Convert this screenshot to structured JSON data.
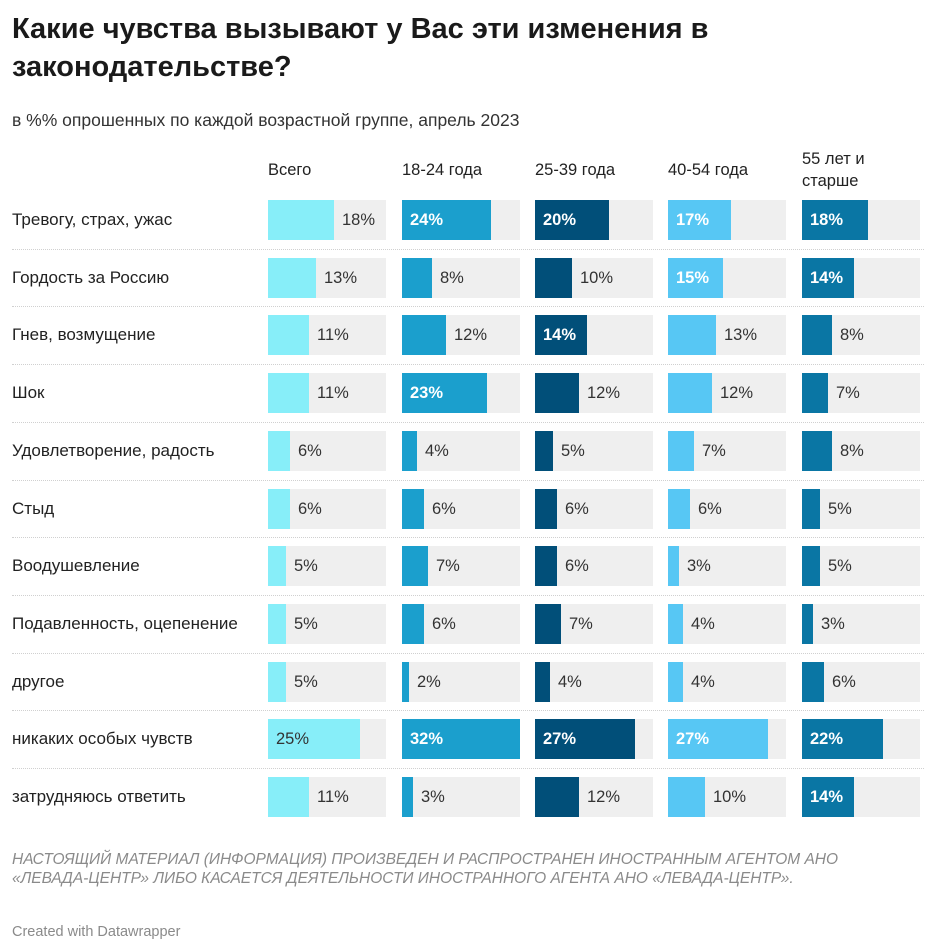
{
  "chart_data": {
    "type": "bar",
    "title": "Какие чувства вызывают у Вас эти изменения в законодательстве?",
    "subtitle": "в %% опрошенных по каждой возрастной группе, апрель 2023",
    "unit": "%",
    "xlim": [
      0,
      32
    ],
    "categories": [
      "Тревогу, страх, ужас",
      "Гордость за Россию",
      "Гнев, возмущение",
      "Шок",
      "Удовлетворение, радость",
      "Стыд",
      "Воодушевление",
      "Подавленность, оцепенение",
      "другое",
      "никаких особых чувств",
      "затрудняюсь ответить"
    ],
    "series": [
      {
        "name": "Всего",
        "color": "#87eef9",
        "values": [
          18,
          13,
          11,
          11,
          6,
          6,
          5,
          5,
          5,
          25,
          11
        ]
      },
      {
        "name": "18-24 года",
        "color": "#1b9fcd",
        "values": [
          24,
          8,
          12,
          23,
          4,
          6,
          7,
          6,
          2,
          32,
          3
        ]
      },
      {
        "name": "25-39 года",
        "color": "#014f79",
        "values": [
          20,
          10,
          14,
          12,
          5,
          6,
          6,
          7,
          4,
          27,
          12
        ]
      },
      {
        "name": "40-54 года",
        "color": "#57c7f4",
        "values": [
          17,
          15,
          13,
          12,
          7,
          6,
          3,
          4,
          4,
          27,
          10
        ]
      },
      {
        "name": "55 лет и старше",
        "color": "#0a76a4",
        "values": [
          18,
          14,
          8,
          7,
          8,
          5,
          5,
          3,
          6,
          22,
          14
        ]
      }
    ],
    "labels_inside": [
      [
        false,
        false,
        false,
        false,
        false,
        false,
        false,
        false,
        false,
        true,
        false
      ],
      [
        true,
        false,
        false,
        true,
        false,
        false,
        false,
        false,
        false,
        true,
        false
      ],
      [
        true,
        false,
        true,
        false,
        false,
        false,
        false,
        false,
        false,
        true,
        false
      ],
      [
        true,
        true,
        false,
        false,
        false,
        false,
        false,
        false,
        false,
        true,
        false
      ],
      [
        true,
        true,
        false,
        false,
        false,
        false,
        false,
        false,
        false,
        true,
        true
      ]
    ],
    "light_inside_series": [
      0
    ]
  },
  "footer": {
    "note": "НАСТОЯЩИЙ МАТЕРИАЛ (ИНФОРМАЦИЯ) ПРОИЗВЕДЕН И РАСПРОСТРАНЕН ИНОСТРАННЫМ АГЕНТОМ АНО «ЛЕВАДА-ЦЕНТР» ЛИБО КАСАЕТСЯ ДЕЯТЕЛЬНОСТИ ИНОСТРАННОГО АГЕНТА АНО «ЛЕВАДА-ЦЕНТР».",
    "credit": "Created with Datawrapper"
  }
}
